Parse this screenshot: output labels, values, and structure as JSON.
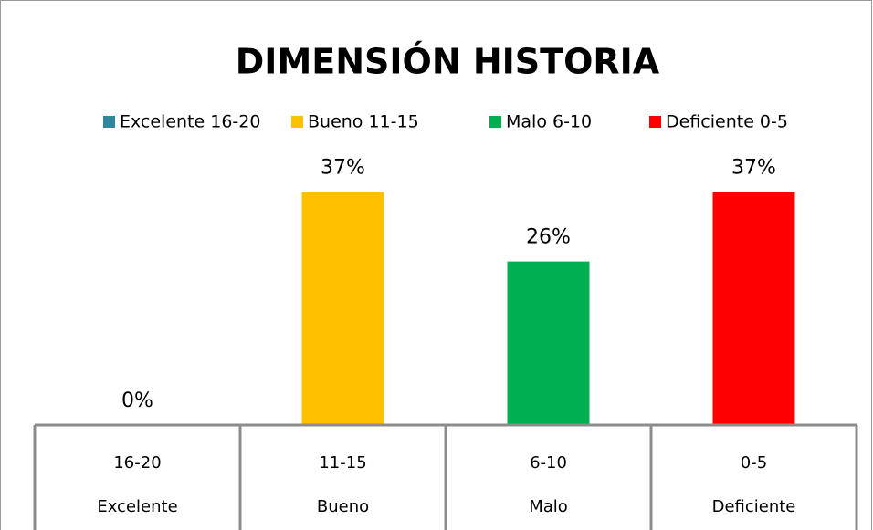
{
  "chart_data": {
    "type": "bar",
    "title": "DIMENSIÓN HISTORIA",
    "categories": [
      "16-20",
      "11-15",
      "6-10",
      "0-5"
    ],
    "category_groups": [
      "Excelente",
      "Bueno",
      "Malo",
      "Deficiente"
    ],
    "series": [
      {
        "name": "Excelente 16-20",
        "color": "#31859c",
        "values": [
          0,
          null,
          null,
          null
        ],
        "value_labels": [
          "0%",
          null,
          null,
          null
        ]
      },
      {
        "name": "Bueno 11-15",
        "color": "#ffc000",
        "values": [
          null,
          37,
          null,
          null
        ],
        "value_labels": [
          null,
          "37%",
          null,
          null
        ]
      },
      {
        "name": "Malo 6-10",
        "color": "#00b050",
        "values": [
          null,
          null,
          26,
          null
        ],
        "value_labels": [
          null,
          null,
          "26%",
          null
        ]
      },
      {
        "name": "Deficiente 0-5",
        "color": "#ff0000",
        "values": [
          null,
          null,
          null,
          37
        ],
        "value_labels": [
          null,
          null,
          null,
          "37%"
        ]
      }
    ],
    "ylim": [
      0,
      40
    ],
    "legend": "top"
  }
}
